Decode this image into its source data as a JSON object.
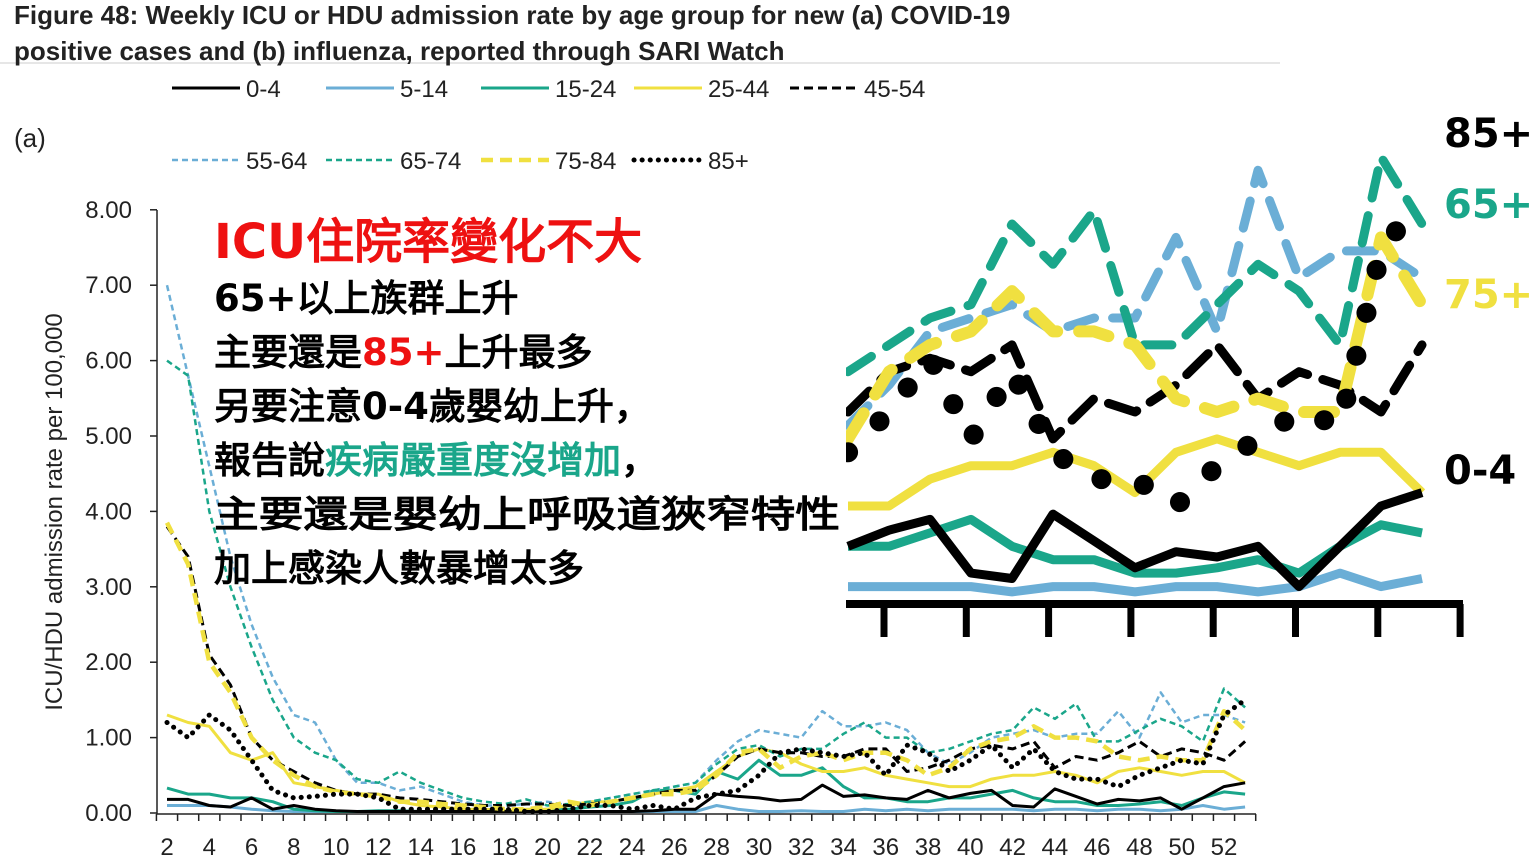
{
  "chart_data": {
    "type": "line",
    "title": [
      "Figure 48: Weekly ICU or HDU admission rate by age group for new (a) COVID-19",
      "positive cases and (b) influenza, reported through SARI Watch"
    ],
    "panel_label": "(a)",
    "xlabel": "",
    "ylabel": "ICU/HDU admission rate per 100,000",
    "ylim": [
      0,
      8
    ],
    "yticks": [
      "0.00",
      "1.00",
      "2.00",
      "3.00",
      "4.00",
      "5.00",
      "6.00",
      "7.00",
      "8.00"
    ],
    "xticks": [
      "2",
      "4",
      "6",
      "8",
      "10",
      "12",
      "14",
      "16",
      "18",
      "20",
      "22",
      "24",
      "26",
      "28",
      "30",
      "32",
      "34",
      "36",
      "38",
      "40",
      "42",
      "44",
      "46",
      "48",
      "50",
      "52"
    ],
    "x_start_week": 2,
    "legend_placement": "top",
    "series": [
      {
        "name": "0-4",
        "color": "#000000",
        "style": "solid",
        "values": [
          0.18,
          0.18,
          0.1,
          0.08,
          0.2,
          0.05,
          0.1,
          0.05,
          0.03,
          0.02,
          0.02,
          0.02,
          0.02,
          0.02,
          0.02,
          0.02,
          0.02,
          0.02,
          0.02,
          0.02,
          0.02,
          0.02,
          0.02,
          0.03,
          0.05,
          0.05,
          0.25,
          0.22,
          0.2,
          0.16,
          0.18,
          0.37,
          0.22,
          0.24,
          0.2,
          0.18,
          0.3,
          0.2,
          0.26,
          0.3,
          0.1,
          0.08,
          0.32,
          0.22,
          0.12,
          0.18,
          0.16,
          0.2,
          0.05,
          0.2,
          0.35,
          0.4
        ]
      },
      {
        "name": "5-14",
        "color": "#6baed6",
        "style": "solid",
        "values": [
          0.1,
          0.1,
          0.1,
          0.08,
          0.05,
          0.03,
          0.02,
          0.02,
          0.02,
          0.02,
          0.02,
          0.02,
          0.02,
          0.02,
          0.02,
          0.02,
          0.02,
          0.02,
          0.02,
          0.02,
          0.02,
          0.02,
          0.02,
          0.02,
          0.02,
          0.02,
          0.1,
          0.05,
          0.02,
          0.02,
          0.03,
          0.02,
          0.02,
          0.05,
          0.03,
          0.05,
          0.03,
          0.05,
          0.05,
          0.05,
          0.05,
          0.03,
          0.05,
          0.05,
          0.03,
          0.05,
          0.05,
          0.03,
          0.05,
          0.1,
          0.05,
          0.08
        ]
      },
      {
        "name": "15-24",
        "color": "#1aa68a",
        "style": "solid",
        "values": [
          0.33,
          0.25,
          0.25,
          0.2,
          0.2,
          0.15,
          0.05,
          0.03,
          0.02,
          0.02,
          0.03,
          0.03,
          0.02,
          0.02,
          0.02,
          0.02,
          0.02,
          0.03,
          0.05,
          0.05,
          0.08,
          0.1,
          0.15,
          0.3,
          0.3,
          0.25,
          0.55,
          0.45,
          0.7,
          0.5,
          0.5,
          0.6,
          0.35,
          0.2,
          0.2,
          0.15,
          0.15,
          0.2,
          0.2,
          0.25,
          0.3,
          0.2,
          0.15,
          0.15,
          0.1,
          0.1,
          0.12,
          0.15,
          0.1,
          0.2,
          0.28,
          0.25
        ]
      },
      {
        "name": "25-44",
        "color": "#f0e040",
        "style": "solid",
        "values": [
          1.3,
          1.2,
          1.15,
          0.8,
          0.7,
          0.8,
          0.4,
          0.35,
          0.3,
          0.25,
          0.25,
          0.15,
          0.1,
          0.08,
          0.05,
          0.05,
          0.03,
          0.05,
          0.05,
          0.1,
          0.15,
          0.15,
          0.2,
          0.25,
          0.3,
          0.35,
          0.55,
          0.75,
          0.85,
          0.8,
          0.65,
          0.55,
          0.55,
          0.6,
          0.5,
          0.45,
          0.4,
          0.35,
          0.35,
          0.45,
          0.5,
          0.5,
          0.55,
          0.5,
          0.4,
          0.55,
          0.6,
          0.55,
          0.5,
          0.55,
          0.55,
          0.4
        ]
      },
      {
        "name": "45-54",
        "color": "#000000",
        "style": "dashed",
        "values": [
          3.8,
          3.4,
          2.1,
          1.7,
          1.0,
          0.7,
          0.55,
          0.4,
          0.3,
          0.25,
          0.25,
          0.2,
          0.18,
          0.15,
          0.12,
          0.1,
          0.1,
          0.12,
          0.12,
          0.1,
          0.12,
          0.15,
          0.2,
          0.25,
          0.3,
          0.3,
          0.5,
          0.75,
          0.85,
          0.8,
          0.8,
          0.75,
          0.75,
          0.85,
          0.85,
          0.55,
          0.6,
          0.7,
          0.85,
          0.9,
          0.85,
          0.95,
          0.6,
          0.75,
          0.7,
          0.8,
          0.95,
          0.75,
          0.85,
          0.8,
          0.7,
          0.95
        ]
      },
      {
        "name": "55-64",
        "color": "#6baed6",
        "style": "short-dash",
        "values": [
          7.0,
          5.8,
          4.6,
          3.4,
          2.5,
          1.8,
          1.3,
          1.2,
          0.7,
          0.4,
          0.4,
          0.3,
          0.35,
          0.25,
          0.15,
          0.1,
          0.1,
          0.12,
          0.15,
          0.1,
          0.15,
          0.2,
          0.25,
          0.3,
          0.35,
          0.4,
          0.7,
          0.95,
          1.1,
          1.05,
          1.0,
          1.35,
          1.15,
          1.15,
          1.2,
          1.1,
          0.8,
          0.65,
          0.8,
          1.0,
          1.05,
          1.1,
          1.0,
          1.05,
          1.05,
          1.35,
          1.0,
          1.6,
          1.2,
          1.3,
          1.3,
          1.2
        ]
      },
      {
        "name": "65-74",
        "color": "#1aa68a",
        "style": "short-dash",
        "values": [
          6.0,
          5.8,
          4.0,
          3.0,
          2.2,
          1.5,
          1.0,
          0.8,
          0.7,
          0.45,
          0.4,
          0.55,
          0.4,
          0.3,
          0.2,
          0.15,
          0.12,
          0.18,
          0.1,
          0.12,
          0.15,
          0.2,
          0.25,
          0.3,
          0.35,
          0.4,
          0.65,
          0.85,
          0.9,
          0.75,
          0.85,
          0.85,
          1.05,
          1.2,
          1.0,
          1.0,
          0.8,
          0.85,
          0.95,
          1.05,
          1.1,
          1.4,
          1.25,
          1.45,
          0.95,
          0.95,
          1.1,
          1.25,
          1.15,
          0.95,
          1.65,
          1.4
        ]
      },
      {
        "name": "75-84",
        "color": "#f0e040",
        "style": "long-dash",
        "values": [
          3.85,
          3.3,
          2.0,
          1.6,
          1.0,
          0.7,
          0.5,
          0.35,
          0.28,
          0.25,
          0.22,
          0.15,
          0.15,
          0.12,
          0.1,
          0.08,
          0.05,
          0.05,
          0.08,
          0.15,
          0.1,
          0.15,
          0.2,
          0.25,
          0.25,
          0.3,
          0.5,
          0.8,
          0.85,
          0.6,
          0.75,
          0.8,
          0.7,
          0.8,
          0.8,
          0.7,
          0.5,
          0.6,
          0.85,
          0.95,
          1.0,
          1.15,
          1.0,
          1.0,
          0.95,
          0.75,
          0.7,
          0.75,
          0.7,
          0.7,
          1.35,
          1.1
        ]
      },
      {
        "name": "85+",
        "color": "#000000",
        "style": "dotted",
        "values": [
          1.2,
          1.0,
          1.3,
          1.1,
          0.7,
          0.3,
          0.2,
          0.22,
          0.25,
          0.25,
          0.2,
          0.05,
          0.05,
          0.05,
          0.05,
          0.05,
          0.05,
          0.02,
          0.02,
          0.05,
          0.1,
          0.1,
          0.05,
          0.1,
          0.05,
          0.2,
          0.25,
          0.3,
          0.5,
          0.8,
          0.85,
          0.8,
          0.75,
          0.8,
          0.5,
          0.9,
          0.8,
          0.55,
          0.7,
          0.9,
          0.6,
          0.85,
          0.55,
          0.45,
          0.45,
          0.35,
          0.5,
          0.6,
          0.7,
          0.65,
          1.3,
          1.5
        ]
      }
    ],
    "inset": {
      "from_week": 39,
      "ylim": [
        0,
        1.75
      ],
      "labels": [
        {
          "text": "85+",
          "color": "#000000"
        },
        {
          "text": "65+",
          "color": "#1aa68a"
        },
        {
          "text": "75+",
          "color": "#f0e040"
        },
        {
          "text": "0-4",
          "color": "#000000"
        }
      ]
    }
  },
  "annotation": {
    "headline": "ICU住院率變化不大",
    "line1": "65+以上族群上升",
    "line2_a": "主要還是",
    "line2_b": "85+",
    "line2_c": "上升最多",
    "line3": "另要注意0-4歲嬰幼上升，",
    "line4_a": "報告說",
    "line4_b": "疾病嚴重度沒增加",
    "line4_c": "，",
    "line5": "主要還是嬰幼上呼吸道狹窄特性",
    "line6": "加上感染人數暴增太多",
    "red": "#ee1111",
    "green": "#1aa68a"
  }
}
